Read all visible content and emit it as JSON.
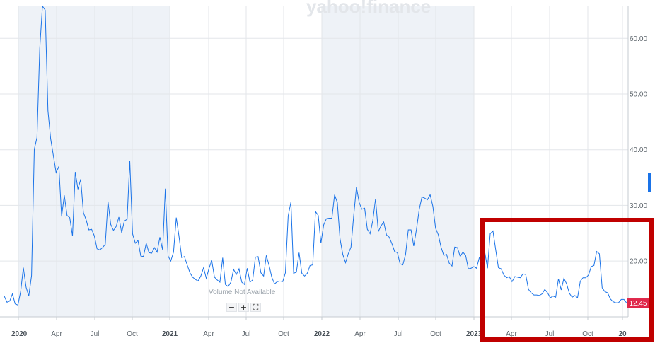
{
  "watermark": "yahoo!finance",
  "volume_note": "Volume Not Available",
  "zoom": {
    "minus": "−",
    "plus": "+",
    "fit": "⛶"
  },
  "colors": {
    "line": "#1a73e8",
    "shade": "#eef2f7",
    "grid": "#e3e6ea",
    "price_marker": "#e0284b",
    "highlight_box": "#c00000"
  },
  "chart_data": {
    "type": "line",
    "title": "",
    "xlabel": "",
    "ylabel": "",
    "ylim": [
      9,
      67
    ],
    "y_ticks": [
      "20.00",
      "30.00",
      "40.00",
      "50.00",
      "60.00"
    ],
    "x_ticks": [
      "2020",
      "Apr",
      "Jul",
      "Oct",
      "2021",
      "Apr",
      "Jul",
      "Oct",
      "2022",
      "Apr",
      "Jul",
      "Oct",
      "2023",
      "Apr",
      "Jul",
      "Oct",
      "20"
    ],
    "last_price": "12.45",
    "series": [
      {
        "values": [
          13.7,
          12.6,
          12.8,
          14.1,
          12.3,
          12.1,
          14.5,
          18.8,
          15.3,
          13.7,
          17.4,
          40.1,
          42.2,
          58.2,
          65.8,
          65.1,
          47.0,
          42.0,
          38.9,
          35.9,
          37.0,
          28.0,
          31.8,
          28.2,
          27.8,
          24.5,
          36.0,
          32.9,
          34.7,
          28.7,
          27.4,
          25.6,
          25.7,
          24.5,
          22.2,
          22.0,
          22.4,
          23.0,
          30.7,
          26.6,
          25.5,
          26.2,
          27.9,
          25.1,
          27.2,
          27.5,
          38.0,
          24.9,
          23.2,
          23.7,
          20.9,
          20.8,
          23.2,
          21.5,
          21.4,
          22.4,
          21.6,
          24.3,
          22.0,
          33.0,
          20.9,
          20.0,
          21.6,
          27.8,
          24.5,
          20.6,
          20.8,
          19.3,
          17.9,
          17.1,
          16.7,
          16.4,
          17.3,
          18.8,
          16.9,
          18.7,
          20.1,
          17.1,
          16.6,
          16.2,
          20.6,
          15.8,
          15.4,
          16.2,
          18.5,
          17.6,
          18.6,
          16.2,
          15.8,
          18.7,
          16.2,
          16.6,
          20.7,
          20.8,
          17.9,
          17.3,
          21.0,
          19.2,
          17.1,
          15.9,
          16.3,
          16.4,
          16.3,
          17.9,
          28.1,
          30.6,
          17.8,
          18.0,
          21.5,
          17.8,
          17.3,
          17.8,
          19.2,
          19.3,
          28.9,
          28.2,
          23.2,
          26.5,
          27.6,
          27.7,
          27.7,
          31.9,
          30.5,
          24.0,
          21.2,
          19.7,
          21.3,
          22.5,
          28.1,
          33.3,
          30.5,
          29.3,
          29.5,
          25.7,
          24.9,
          27.3,
          31.2,
          25.3,
          26.3,
          27.0,
          24.7,
          24.3,
          23.1,
          21.7,
          21.5,
          19.5,
          19.3,
          21.2,
          25.6,
          25.6,
          22.7,
          25.7,
          29.3,
          31.5,
          31.3,
          31.0,
          31.9,
          29.8,
          25.9,
          24.7,
          22.5,
          21.0,
          21.2,
          19.6,
          19.1,
          22.5,
          22.4,
          20.8,
          21.6,
          21.0,
          18.6,
          18.7,
          19.0,
          18.7,
          20.6,
          20.2,
          21.6,
          18.7,
          24.9,
          25.4,
          22.1,
          18.8,
          18.6,
          17.5,
          17.0,
          17.2,
          16.3,
          17.2,
          17.1,
          17.0,
          17.7,
          17.6,
          14.9,
          14.3,
          13.9,
          13.9,
          13.8,
          14.1,
          14.9,
          14.3,
          13.4,
          13.7,
          13.5,
          16.8,
          14.8,
          16.9,
          15.9,
          14.2,
          13.5,
          13.8,
          13.4,
          16.4,
          17.0,
          17.0,
          17.5,
          19.0,
          19.2,
          21.7,
          21.3,
          15.2,
          14.5,
          14.3,
          13.2,
          12.7,
          12.5,
          12.5,
          13.1,
          13.1,
          12.45
        ]
      }
    ]
  }
}
